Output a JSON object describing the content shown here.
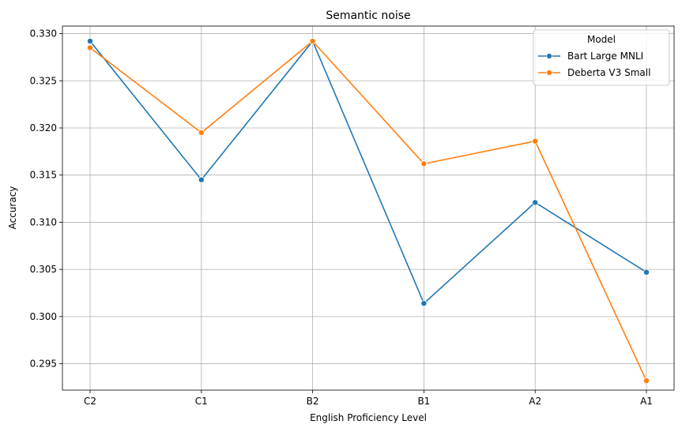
{
  "chart_data": {
    "type": "line",
    "title": "Semantic noise",
    "xlabel": "English Proficiency Level",
    "ylabel": "Accuracy",
    "categories": [
      "C2",
      "C1",
      "B2",
      "B1",
      "A2",
      "A1"
    ],
    "ylim": [
      0.2922,
      0.3308
    ],
    "yticks": [
      0.295,
      0.3,
      0.305,
      0.31,
      0.315,
      0.32,
      0.325,
      0.33
    ],
    "ytick_labels": [
      "0.295",
      "0.300",
      "0.305",
      "0.310",
      "0.315",
      "0.320",
      "0.325",
      "0.330"
    ],
    "grid": true,
    "legend": {
      "title": "Model",
      "position": "top-right"
    },
    "series": [
      {
        "name": "Bart Large MNLI",
        "color": "#1f77b4",
        "values": [
          0.3292,
          0.3145,
          0.3292,
          0.3014,
          0.3121,
          0.3047
        ]
      },
      {
        "name": "Deberta V3 Small",
        "color": "#ff7f0e",
        "values": [
          0.3285,
          0.3195,
          0.3292,
          0.3162,
          0.3186,
          0.2932
        ]
      }
    ]
  }
}
